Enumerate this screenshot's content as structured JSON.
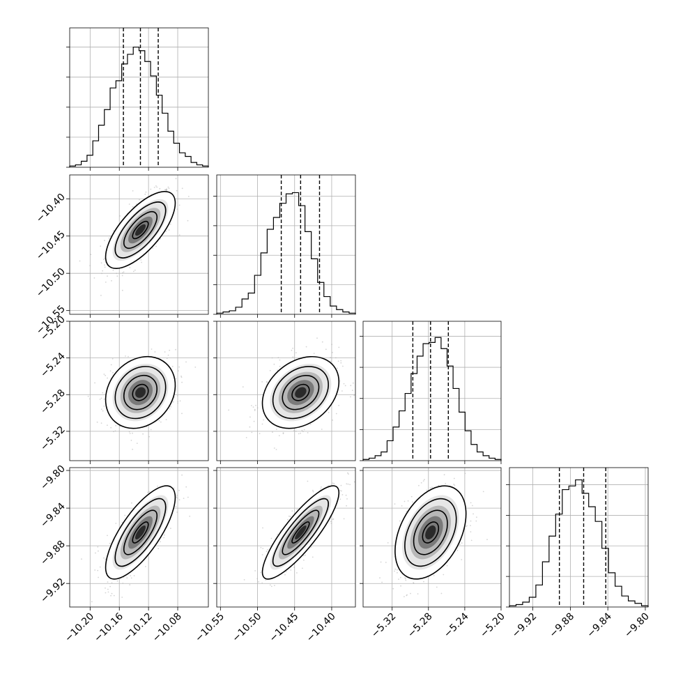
{
  "chart_data": {
    "type": "scatter",
    "subtype": "corner_plot",
    "parameters": [
      {
        "ticks": [
          -10.2,
          -10.16,
          -10.12,
          -10.08
        ],
        "tick_labels": [
          "−10.20",
          "−10.16",
          "−10.12",
          "−10.08"
        ],
        "range": [
          -10.228,
          -10.038
        ]
      },
      {
        "ticks": [
          -10.55,
          -10.5,
          -10.45,
          -10.4
        ],
        "tick_labels": [
          "−10.55",
          "−10.50",
          "−10.45",
          "−10.40"
        ],
        "range": [
          -10.555,
          -10.368
        ]
      },
      {
        "ticks": [
          -5.32,
          -5.28,
          -5.24,
          -5.2
        ],
        "tick_labels": [
          "−5.32",
          "−5.28",
          "−5.24",
          "−5.20"
        ],
        "range": [
          -5.352,
          -5.2
        ]
      },
      {
        "ticks": [
          -9.92,
          -9.88,
          -9.84,
          -9.8
        ],
        "tick_labels": [
          "−9.92",
          "−9.88",
          "−9.84",
          "−9.80"
        ],
        "range": [
          -9.945,
          -9.797
        ]
      }
    ],
    "diagonal": [
      {
        "histogram_counts": [
          1,
          2,
          5,
          10,
          22,
          35,
          48,
          66,
          72,
          86,
          94,
          100,
          97,
          88,
          76,
          60,
          45,
          30,
          20,
          12,
          9,
          4,
          2,
          1
        ],
        "quantiles": [
          -10.1544,
          -10.1311,
          -10.1067
        ],
        "y_max": 116
      },
      {
        "histogram_counts": [
          1,
          2,
          3,
          6,
          13,
          18,
          33,
          52,
          72,
          82,
          94,
          102,
          103,
          92,
          70,
          47,
          27,
          15,
          7,
          4,
          2,
          1
        ],
        "quantiles": [
          -10.468,
          -10.4419,
          -10.4164
        ],
        "y_max": 118
      },
      {
        "histogram_counts": [
          1,
          2,
          4,
          7,
          16,
          27,
          40,
          54,
          70,
          84,
          94,
          95,
          99,
          90,
          76,
          58,
          39,
          24,
          13,
          7,
          4,
          2,
          1
        ],
        "quantiles": [
          -5.2972,
          -5.2777,
          -5.2581
        ],
        "y_max": 112
      },
      {
        "histogram_counts": [
          1,
          2,
          4,
          8,
          18,
          37,
          58,
          76,
          96,
          99,
          104,
          93,
          82,
          70,
          48,
          28,
          17,
          9,
          5,
          3,
          1
        ],
        "quantiles": [
          -9.8917,
          -9.8658,
          -9.8422
        ],
        "y_max": 114
      }
    ],
    "pairs": [
      {
        "x_param": 0,
        "y_param": 1,
        "correlation": 0.7
      },
      {
        "x_param": 0,
        "y_param": 2,
        "correlation": 0.2
      },
      {
        "x_param": 1,
        "y_param": 2,
        "correlation": 0.3
      },
      {
        "x_param": 0,
        "y_param": 3,
        "correlation": 0.75
      },
      {
        "x_param": 1,
        "y_param": 3,
        "correlation": 0.85
      },
      {
        "x_param": 2,
        "y_param": 3,
        "correlation": 0.4
      }
    ],
    "grid": true,
    "colors": {
      "points": "#b0b0b0",
      "lines": "#000000",
      "grid": "#b0b0b0"
    }
  }
}
